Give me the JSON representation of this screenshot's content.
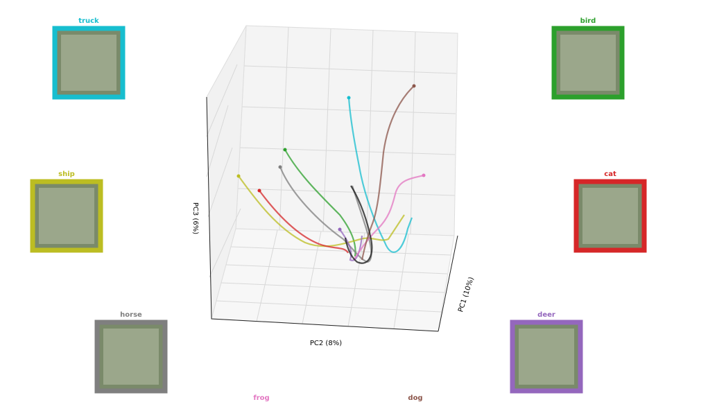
{
  "axes": {
    "z_label": "PC3 (6%)",
    "y_label": "PC2 (8%)",
    "x_label": "PC1 (10%)"
  },
  "classes": [
    {
      "label": "truck",
      "color": "#17becf"
    },
    {
      "label": "bird",
      "color": "#2ca02c"
    },
    {
      "label": "ship",
      "color": "#bcbd22"
    },
    {
      "label": "cat",
      "color": "#d62728"
    },
    {
      "label": "horse",
      "color": "#7f7f7f"
    },
    {
      "label": "deer",
      "color": "#9467bd"
    },
    {
      "label": "frog",
      "color": "#e377c2"
    },
    {
      "label": "dog",
      "color": "#8c564b"
    }
  ]
}
